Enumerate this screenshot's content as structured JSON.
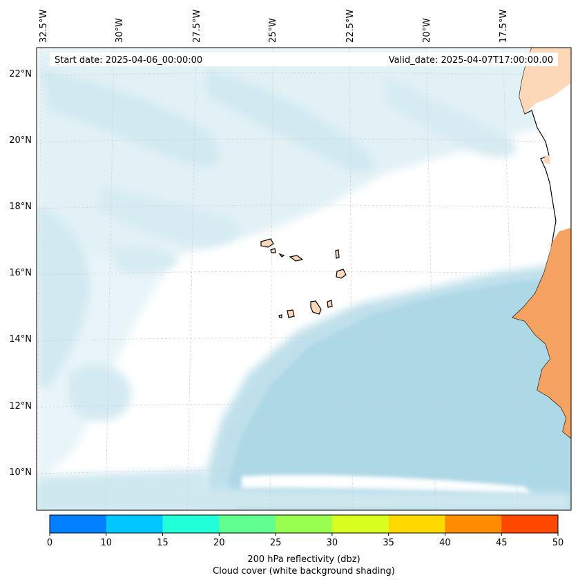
{
  "header": {
    "start_date": "Start date: 2025-04-06_00:00:00",
    "valid_date": "Valid_date: 2025-04-07T17:00:00.00"
  },
  "map": {
    "lon_labels": [
      "32.5°W",
      "30°W",
      "27.5°W",
      "25°W",
      "22.5°W",
      "20°W",
      "17.5°W"
    ],
    "lat_labels": [
      "22°N",
      "20°N",
      "18°N",
      "16°N",
      "14°N",
      "12°N",
      "10°N"
    ],
    "colors": {
      "cloud_light": "#e4f2f7",
      "cloud": "#cfe8f0",
      "cloud_dense": "#add8e6",
      "land_light": "#fcd7b8",
      "land": "#f5a262",
      "coast": "#000000",
      "grid": "#cccccc"
    }
  },
  "colorbar": {
    "ticks": [
      "0",
      "10",
      "15",
      "20",
      "25",
      "30",
      "35",
      "40",
      "45",
      "50"
    ],
    "colors": [
      "#0080ff",
      "#00c8ff",
      "#20ffd8",
      "#60ff90",
      "#98ff50",
      "#d8ff20",
      "#ffd800",
      "#ff8c00",
      "#ff4800"
    ],
    "label_line1": "200 hPa reflectivity (dbz)",
    "label_line2": "Cloud cover (white background shading)"
  }
}
